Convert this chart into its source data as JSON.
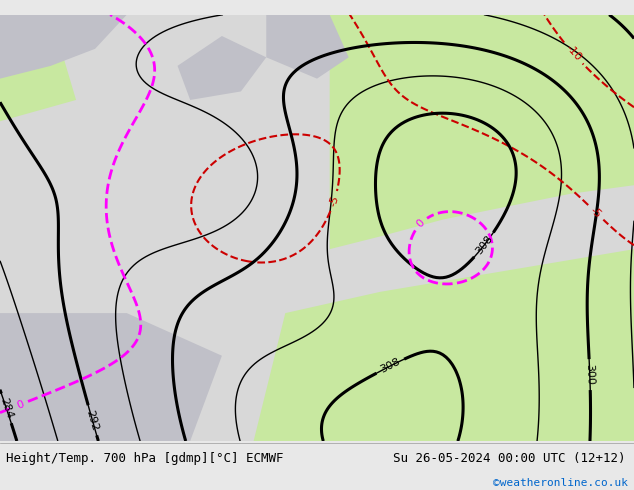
{
  "title_left": "Height/Temp. 700 hPa [gdmp][°C] ECMWF",
  "title_right": "Su 26-05-2024 00:00 UTC (12+12)",
  "credit": "©weatheronline.co.uk",
  "bg_color": "#e8e8e8",
  "land_color_warm": "#c8e8a0",
  "land_color_cold": "#d0d0d0",
  "sea_color": "#d0d0d0",
  "height_contour_color": "#000000",
  "temp_neg_color": "#cc0000",
  "temp_pos_color": "#ff69b4",
  "temp_orange_color": "#ff8c00",
  "zero_isotherm_color": "#ff00ff",
  "bottom_bar_color": "#e0e0e0",
  "figsize": [
    6.34,
    4.9
  ],
  "dpi": 100
}
